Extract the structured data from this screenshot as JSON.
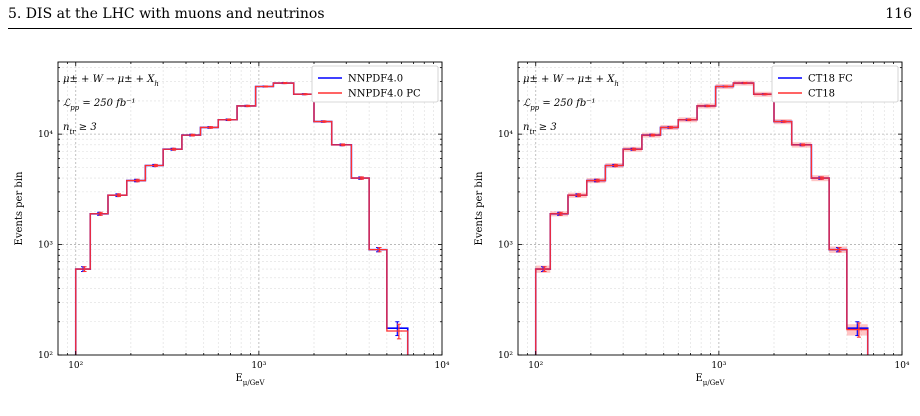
{
  "header": {
    "section": "5. DIS at the LHC with muons and neutrinos",
    "page_number": "116"
  },
  "chart_data": [
    {
      "type": "line",
      "step": true,
      "log_x": true,
      "log_y": true,
      "xlim": [
        80,
        10000
      ],
      "ylim": [
        100,
        45000
      ],
      "xlabel": "E_μ/GeV",
      "ylabel": "Events per bin",
      "x_ticks": [
        {
          "value": 100,
          "label": "10²"
        },
        {
          "value": 1000,
          "label": "10³"
        },
        {
          "value": 10000,
          "label": "10⁴"
        }
      ],
      "y_ticks": [
        {
          "value": 100,
          "label": "10²"
        },
        {
          "value": 1000,
          "label": "10³"
        },
        {
          "value": 10000,
          "label": "10⁴"
        }
      ],
      "grid": true,
      "annotations": [
        "μ± + W → μ± + X_h",
        "ℒ_pp = 250 fb⁻¹",
        "n_tr ≥ 3"
      ],
      "legend": "top-right",
      "bin_edges": [
        100,
        120,
        150,
        190,
        240,
        300,
        380,
        480,
        600,
        760,
        960,
        1200,
        1550,
        2000,
        2500,
        3200,
        4000,
        5000,
        6500
      ],
      "series": [
        {
          "name": "NNPDF4.0",
          "color": "#0000ff",
          "values": [
            600,
            1900,
            2800,
            3800,
            5200,
            7300,
            9800,
            11500,
            13500,
            18000,
            27000,
            29000,
            23000,
            13000,
            8000,
            4000,
            900,
            175
          ],
          "errors": [
            30,
            60,
            80,
            100,
            120,
            150,
            180,
            200,
            220,
            250,
            300,
            320,
            280,
            200,
            150,
            100,
            40,
            25
          ]
        },
        {
          "name": "NNPDF4.0 PC",
          "color": "#ff3030",
          "values": [
            600,
            1900,
            2800,
            3800,
            5200,
            7300,
            9800,
            11500,
            13500,
            18000,
            27000,
            29000,
            23000,
            13000,
            8000,
            4000,
            900,
            165
          ],
          "errors": [
            30,
            60,
            80,
            100,
            120,
            150,
            180,
            200,
            220,
            250,
            300,
            320,
            280,
            200,
            150,
            100,
            40,
            25
          ]
        }
      ]
    },
    {
      "type": "line",
      "step": true,
      "log_x": true,
      "log_y": true,
      "xlim": [
        80,
        10000
      ],
      "ylim": [
        100,
        45000
      ],
      "xlabel": "E_μ/GeV",
      "ylabel": "Events per bin",
      "x_ticks": [
        {
          "value": 100,
          "label": "10²"
        },
        {
          "value": 1000,
          "label": "10³"
        },
        {
          "value": 10000,
          "label": "10⁴"
        }
      ],
      "y_ticks": [
        {
          "value": 100,
          "label": "10²"
        },
        {
          "value": 1000,
          "label": "10³"
        },
        {
          "value": 10000,
          "label": "10⁴"
        }
      ],
      "grid": true,
      "annotations": [
        "μ± + W → μ± + X_h",
        "ℒ_pp = 250 fb⁻¹",
        "n_tr ≥ 3"
      ],
      "legend": "top-right",
      "bin_edges": [
        100,
        120,
        150,
        190,
        240,
        300,
        380,
        480,
        600,
        760,
        960,
        1200,
        1550,
        2000,
        2500,
        3200,
        4000,
        5000,
        6500
      ],
      "series": [
        {
          "name": "CT18 FC",
          "color": "#0000ff",
          "values": [
            600,
            1900,
            2800,
            3800,
            5200,
            7300,
            9800,
            11500,
            13500,
            18000,
            27000,
            29000,
            23000,
            13000,
            8000,
            4000,
            900,
            175
          ],
          "errors": [
            30,
            60,
            80,
            100,
            120,
            150,
            180,
            200,
            220,
            250,
            300,
            320,
            280,
            200,
            150,
            100,
            40,
            25
          ]
        },
        {
          "name": "CT18",
          "color": "#ff3030",
          "values": [
            600,
            1900,
            2800,
            3800,
            5200,
            7300,
            9800,
            11500,
            13500,
            18000,
            27000,
            29000,
            23000,
            13000,
            8000,
            4000,
            900,
            170
          ],
          "errors": [
            30,
            60,
            80,
            100,
            120,
            150,
            180,
            200,
            220,
            250,
            300,
            320,
            280,
            200,
            150,
            100,
            40,
            25
          ],
          "band": [
            45,
            100,
            150,
            200,
            270,
            380,
            500,
            600,
            700,
            950,
            1400,
            1500,
            1200,
            700,
            450,
            250,
            60,
            20
          ]
        }
      ]
    }
  ]
}
